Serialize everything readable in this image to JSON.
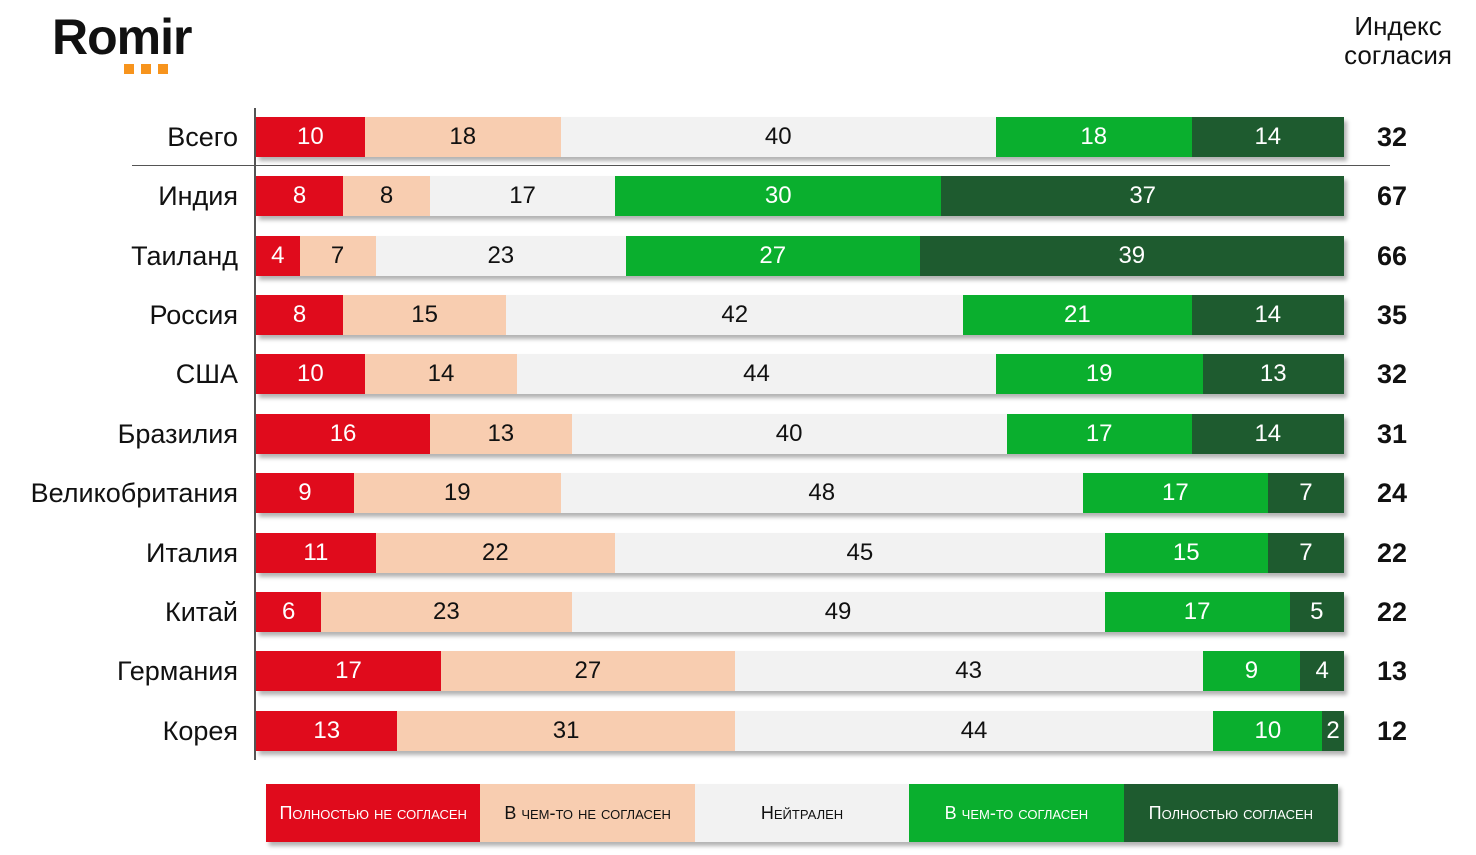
{
  "logo": {
    "text": "Romir"
  },
  "index_title": [
    "Индекс",
    "согласия"
  ],
  "chart_data": {
    "type": "bar",
    "orientation": "horizontal",
    "stacked": true,
    "xlim": [
      0,
      100
    ],
    "categories": [
      "Всего",
      "Индия",
      "Таиланд",
      "Россия",
      "США",
      "Бразилия",
      "Великобритания",
      "Италия",
      "Китай",
      "Германия",
      "Корея"
    ],
    "series": [
      {
        "name": "Полностью не согласен",
        "color": "#e00b1c",
        "text_color": "#ffffff",
        "values": [
          10,
          8,
          4,
          8,
          10,
          16,
          9,
          11,
          6,
          17,
          13
        ]
      },
      {
        "name": "В чем-то не согласен",
        "color": "#f8cdb0",
        "text_color": "#111111",
        "values": [
          18,
          8,
          7,
          15,
          14,
          13,
          19,
          22,
          23,
          27,
          31
        ]
      },
      {
        "name": "Нейтрален",
        "color": "#f2f2f2",
        "text_color": "#111111",
        "values": [
          40,
          17,
          23,
          42,
          44,
          40,
          48,
          45,
          49,
          43,
          44
        ]
      },
      {
        "name": "В чем-то согласен",
        "color": "#0aaf2e",
        "text_color": "#ffffff",
        "values": [
          18,
          30,
          27,
          21,
          19,
          17,
          17,
          15,
          17,
          9,
          10
        ]
      },
      {
        "name": "Полностью согласен",
        "color": "#1e5b2f",
        "text_color": "#ffffff",
        "values": [
          14,
          37,
          39,
          14,
          13,
          14,
          7,
          7,
          5,
          4,
          2
        ]
      }
    ],
    "agreement_index": [
      32,
      67,
      66,
      35,
      32,
      31,
      24,
      22,
      22,
      13,
      12
    ],
    "legend_position": "bottom"
  }
}
